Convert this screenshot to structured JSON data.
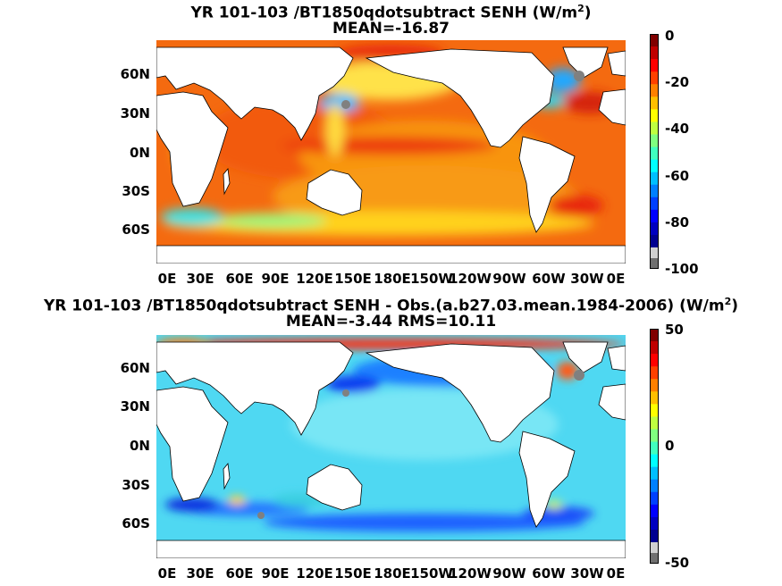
{
  "chart_data": [
    {
      "type": "heatmap",
      "title": "YR 101-103 /BT1850qdotsubtract  SENH (W/m",
      "title_sup": "2",
      "title_close": ")",
      "subtitle": "MEAN=-16.87",
      "y_ticks": [
        "60N",
        "30N",
        "0N",
        "30S",
        "60S"
      ],
      "x_ticks": [
        "0E",
        "30E",
        "60E",
        "90E",
        "120E",
        "150E",
        "180E",
        "150W",
        "120W",
        "90W",
        "60W",
        "30W",
        "0E"
      ],
      "colorbar": {
        "min": -100,
        "max": 0,
        "ticks": [
          "0",
          "-20",
          "-40",
          "-60",
          "-80",
          "-100"
        ]
      }
    },
    {
      "type": "heatmap",
      "title": "YR 101-103 /BT1850qdotsubtract SENH - Obs.(a.b27.03.mean.1984-2006) (W/m",
      "title_sup": "2",
      "title_close": ")",
      "subtitle": "MEAN=-3.44 RMS=10.11",
      "y_ticks": [
        "60N",
        "30N",
        "0N",
        "30S",
        "60S"
      ],
      "x_ticks": [
        "0E",
        "30E",
        "60E",
        "90E",
        "120E",
        "150E",
        "180E",
        "150W",
        "120W",
        "90W",
        "60W",
        "30W",
        "0E"
      ],
      "colorbar": {
        "min": -50,
        "max": 50,
        "ticks": [
          "50",
          "0",
          "-50"
        ]
      }
    }
  ]
}
